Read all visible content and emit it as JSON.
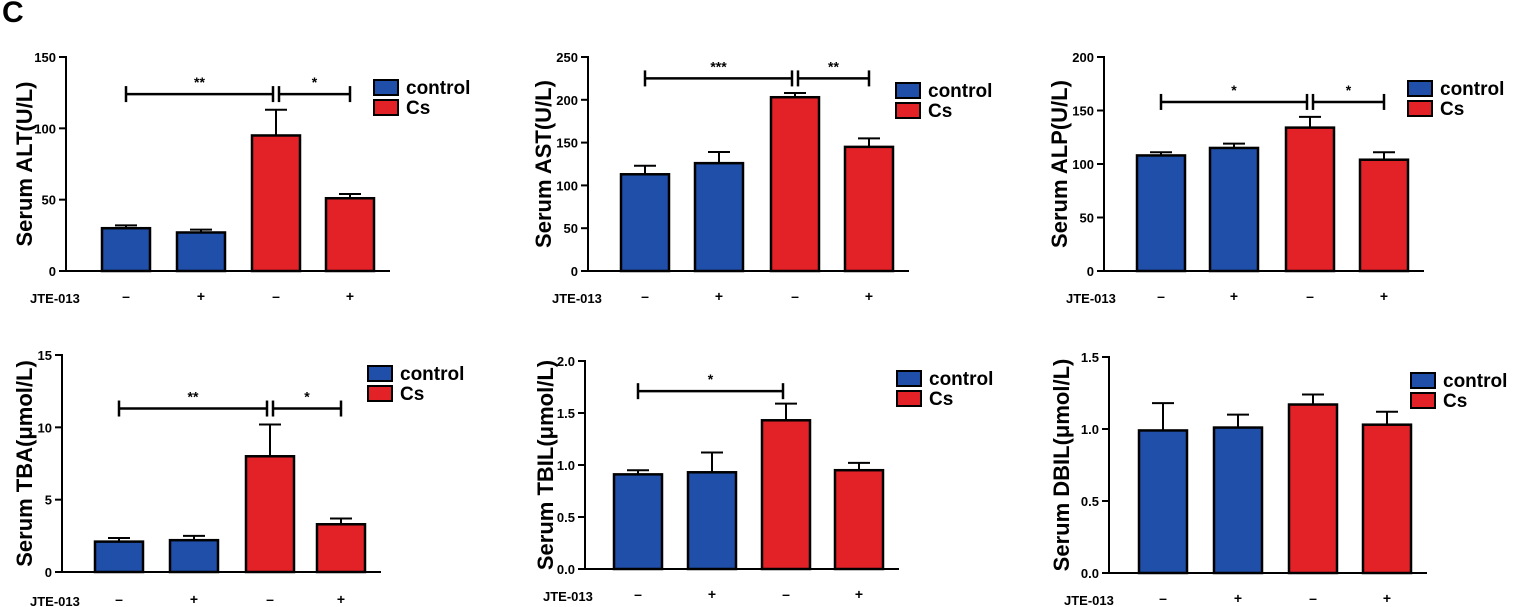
{
  "panel_label": "C",
  "colors": {
    "control": "#1f4fa8",
    "cs": "#e32228",
    "axis": "#000000"
  },
  "legend_labels": [
    "control",
    "Cs"
  ],
  "treatment_label": "JTE-013",
  "treatment_marks": [
    "–",
    "+",
    "–",
    "+"
  ],
  "chart_data": [
    {
      "type": "bar",
      "ylabel": "Serum ALT(U/L)",
      "ylim": [
        0,
        150
      ],
      "yticks": [
        0,
        50,
        100,
        150
      ],
      "legend": "right",
      "series": [
        {
          "name": "control",
          "values": [
            30,
            27
          ],
          "errors": [
            2,
            2
          ]
        },
        {
          "name": "Cs",
          "values": [
            95,
            51
          ],
          "errors": [
            18,
            3
          ]
        }
      ],
      "significance": [
        {
          "from": 0,
          "to": 2,
          "label": "**",
          "y": 124
        },
        {
          "from": 2,
          "to": 3,
          "label": "*",
          "y": 124
        }
      ]
    },
    {
      "type": "bar",
      "ylabel": "Serum AST(U/L)",
      "ylim": [
        0,
        250
      ],
      "yticks": [
        0,
        50,
        100,
        150,
        200,
        250
      ],
      "legend": "right",
      "series": [
        {
          "name": "control",
          "values": [
            113,
            126
          ],
          "errors": [
            10,
            13
          ]
        },
        {
          "name": "Cs",
          "values": [
            203,
            145
          ],
          "errors": [
            5,
            10
          ]
        }
      ],
      "significance": [
        {
          "from": 0,
          "to": 2,
          "label": "***",
          "y": 225
        },
        {
          "from": 2,
          "to": 3,
          "label": "**",
          "y": 225
        }
      ]
    },
    {
      "type": "bar",
      "ylabel": "Serum ALP(U/L)",
      "ylim": [
        0,
        200
      ],
      "yticks": [
        0,
        50,
        100,
        150,
        200
      ],
      "legend": "right",
      "series": [
        {
          "name": "control",
          "values": [
            108,
            115
          ],
          "errors": [
            3,
            4
          ]
        },
        {
          "name": "Cs",
          "values": [
            134,
            104
          ],
          "errors": [
            10,
            7
          ]
        }
      ],
      "significance": [
        {
          "from": 0,
          "to": 2,
          "label": "*",
          "y": 158
        },
        {
          "from": 2,
          "to": 3,
          "label": "*",
          "y": 158
        }
      ]
    },
    {
      "type": "bar",
      "ylabel": "Serum TBA(μmol/L)",
      "ylim": [
        0,
        15
      ],
      "yticks": [
        0,
        5,
        10,
        15
      ],
      "legend": "right",
      "series": [
        {
          "name": "control",
          "values": [
            2.1,
            2.2
          ],
          "errors": [
            0.25,
            0.3
          ]
        },
        {
          "name": "Cs",
          "values": [
            8.0,
            3.3
          ],
          "errors": [
            2.2,
            0.4
          ]
        }
      ],
      "significance": [
        {
          "from": 0,
          "to": 2,
          "label": "**",
          "y": 11.3
        },
        {
          "from": 2,
          "to": 3,
          "label": "*",
          "y": 11.3
        }
      ]
    },
    {
      "type": "bar",
      "ylabel": "Serum TBIL(μmol/L)",
      "ylim": [
        0,
        2.0
      ],
      "yticks": [
        "0.0",
        "0.5",
        "1.0",
        "1.5",
        "2.0"
      ],
      "legend": "right",
      "series": [
        {
          "name": "control",
          "values": [
            0.91,
            0.93
          ],
          "errors": [
            0.04,
            0.19
          ]
        },
        {
          "name": "Cs",
          "values": [
            1.43,
            0.95
          ],
          "errors": [
            0.16,
            0.07
          ]
        }
      ],
      "significance": [
        {
          "from": 0,
          "to": 2,
          "label": "*",
          "y": 1.71
        }
      ]
    },
    {
      "type": "bar",
      "ylabel": "Serum DBIL(μmol/L)",
      "ylim": [
        0,
        1.5
      ],
      "yticks": [
        "0.0",
        "0.5",
        "1.0",
        "1.5"
      ],
      "legend": "right",
      "series": [
        {
          "name": "control",
          "values": [
            0.99,
            1.01
          ],
          "errors": [
            0.19,
            0.09
          ]
        },
        {
          "name": "Cs",
          "values": [
            1.17,
            1.03
          ],
          "errors": [
            0.07,
            0.09
          ]
        }
      ],
      "significance": []
    }
  ]
}
